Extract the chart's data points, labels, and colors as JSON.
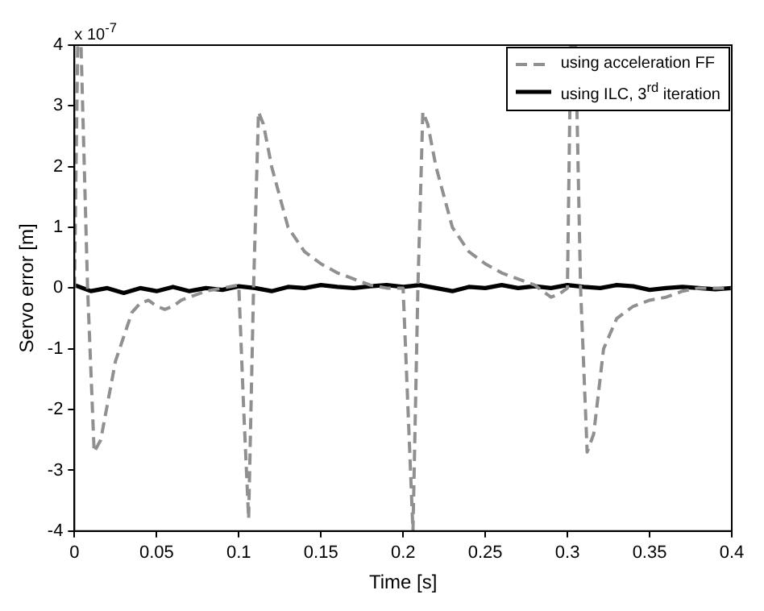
{
  "chart_data": {
    "type": "line",
    "xlabel": "Time [s]",
    "ylabel": "Servo error [m]",
    "annotations": [
      "x 10$^{-7}$"
    ],
    "xlim": [
      0,
      0.4
    ],
    "xticks": [
      0,
      0.05,
      0.1,
      0.15,
      0.2,
      0.25,
      0.3,
      0.35,
      0.4
    ],
    "ylim": [
      -4,
      4
    ],
    "yticks": [
      -4,
      -3,
      -2,
      -1,
      0,
      1,
      2,
      3,
      4
    ],
    "grid": false,
    "legend": "top right",
    "series": [
      {
        "name": "using acceleration FF",
        "color": "#909090",
        "line_style": "dashed",
        "x": [
          0,
          0.002,
          0.004,
          0.008,
          0.012,
          0.016,
          0.025,
          0.035,
          0.04,
          0.045,
          0.05,
          0.055,
          0.06,
          0.065,
          0.07,
          0.08,
          0.09,
          0.1,
          0.103,
          0.106,
          0.109,
          0.112,
          0.115,
          0.12,
          0.125,
          0.13,
          0.14,
          0.15,
          0.16,
          0.17,
          0.18,
          0.19,
          0.2,
          0.203,
          0.206,
          0.209,
          0.212,
          0.215,
          0.22,
          0.225,
          0.23,
          0.24,
          0.25,
          0.26,
          0.27,
          0.28,
          0.29,
          0.295,
          0.3,
          0.302,
          0.305,
          0.308,
          0.312,
          0.316,
          0.322,
          0.33,
          0.34,
          0.35,
          0.36,
          0.37,
          0.38,
          0.39,
          0.4
        ],
        "values": [
          0,
          4,
          4,
          0,
          -2.7,
          -2.5,
          -1.2,
          -0.4,
          -0.25,
          -0.2,
          -0.3,
          -0.35,
          -0.3,
          -0.2,
          -0.15,
          -0.05,
          0,
          0.05,
          -2,
          -3.8,
          0,
          2.9,
          2.7,
          2.0,
          1.5,
          1.0,
          0.6,
          0.4,
          0.25,
          0.15,
          0.05,
          0,
          0,
          -2,
          -4,
          0,
          2.9,
          2.7,
          2.0,
          1.5,
          1.0,
          0.6,
          0.4,
          0.25,
          0.15,
          0.05,
          -0.15,
          -0.1,
          0,
          4,
          4,
          0,
          -2.7,
          -2.4,
          -1.0,
          -0.5,
          -0.3,
          -0.2,
          -0.15,
          -0.05,
          0,
          0,
          0
        ]
      },
      {
        "name": "using ILC, 3$^{rd}$ iteration",
        "color": "#000000",
        "line_style": "solid",
        "x": [
          0,
          0.01,
          0.02,
          0.03,
          0.04,
          0.05,
          0.06,
          0.07,
          0.08,
          0.09,
          0.1,
          0.11,
          0.12,
          0.13,
          0.14,
          0.15,
          0.16,
          0.17,
          0.18,
          0.19,
          0.2,
          0.21,
          0.22,
          0.23,
          0.24,
          0.25,
          0.26,
          0.27,
          0.28,
          0.29,
          0.3,
          0.31,
          0.32,
          0.33,
          0.34,
          0.35,
          0.36,
          0.37,
          0.38,
          0.39,
          0.4
        ],
        "values": [
          0.05,
          -0.05,
          0,
          -0.08,
          0,
          -0.05,
          0.02,
          -0.05,
          0,
          -0.03,
          0.03,
          0,
          -0.05,
          0.02,
          0,
          0.05,
          0.02,
          0,
          0.03,
          0.05,
          0.02,
          0.05,
          0,
          -0.05,
          0.02,
          0,
          0.05,
          0,
          0.03,
          0,
          0.05,
          0.02,
          0,
          0.05,
          0.03,
          -0.03,
          0,
          0.02,
          0,
          -0.02,
          0
        ]
      }
    ]
  }
}
